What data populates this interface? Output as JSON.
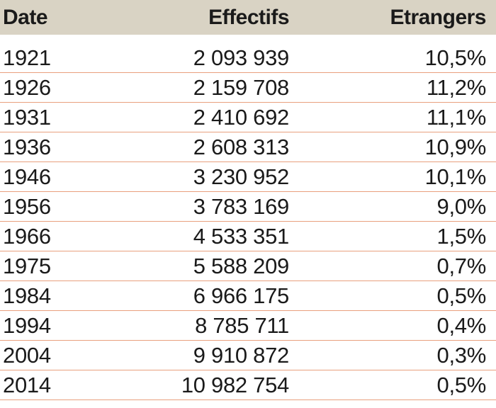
{
  "table": {
    "headers": {
      "date": "Date",
      "effectifs": "Effectifs",
      "etrangers": "Etrangers"
    },
    "rows": [
      {
        "date": "1921",
        "effectifs": "2 093 939",
        "etrangers": "10,5%"
      },
      {
        "date": "1926",
        "effectifs": "2 159 708",
        "etrangers": "11,2%"
      },
      {
        "date": "1931",
        "effectifs": "2 410 692",
        "etrangers": "11,1%"
      },
      {
        "date": "1936",
        "effectifs": "2 608 313",
        "etrangers": "10,9%"
      },
      {
        "date": "1946",
        "effectifs": "3 230 952",
        "etrangers": "10,1%"
      },
      {
        "date": "1956",
        "effectifs": "3 783 169",
        "etrangers": "9,0%"
      },
      {
        "date": "1966",
        "effectifs": "4 533 351",
        "etrangers": "1,5%"
      },
      {
        "date": "1975",
        "effectifs": "5 588 209",
        "etrangers": "0,7%"
      },
      {
        "date": "1984",
        "effectifs": "6 966 175",
        "etrangers": "0,5%"
      },
      {
        "date": "1994",
        "effectifs": "8 785 711",
        "etrangers": "0,4%"
      },
      {
        "date": "2004",
        "effectifs": "9 910 872",
        "etrangers": "0,3%"
      },
      {
        "date": "2014",
        "effectifs": "10 982 754",
        "etrangers": "0,5%"
      }
    ]
  },
  "colors": {
    "header_background": "#d9d3c4",
    "row_divider": "#e9a07e",
    "text": "#1a1a1a"
  }
}
